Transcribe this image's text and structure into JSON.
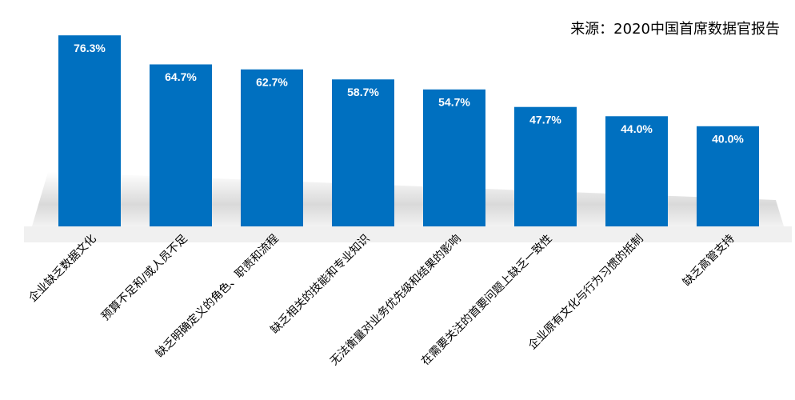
{
  "chart_data": {
    "type": "bar",
    "annotation": "来源：2020中国首席数据官报告",
    "categories": [
      "企业缺乏数据文化",
      "预算不足和/或人员不足",
      "缺乏明确定义的角色、职责和流程",
      "缺乏相关的技能和专业知识",
      "无法衡量对业务优先级和结果的影响",
      "在需要关注的首要问题上缺乏一致性",
      "企业原有文化与行为习惯的抵制",
      "缺乏高管支持"
    ],
    "values": [
      76.3,
      64.7,
      62.7,
      58.7,
      54.7,
      47.7,
      44.0,
      40.0
    ],
    "value_labels": [
      "76.3%",
      "64.7%",
      "62.7%",
      "58.7%",
      "54.7%",
      "47.7%",
      "44.0%",
      "40.0%"
    ],
    "color": "#0070c0"
  }
}
